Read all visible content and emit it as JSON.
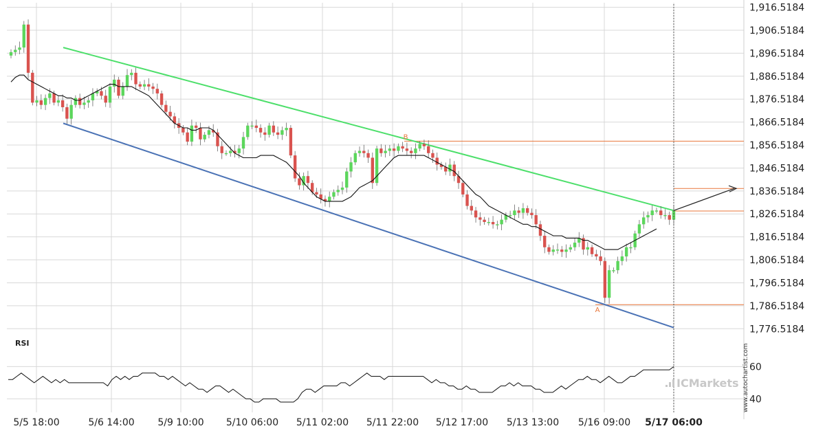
{
  "chart_data": {
    "type": "candlestick",
    "title": "",
    "x_ticks": [
      "5/5 18:00",
      "5/6 14:00",
      "5/9 10:00",
      "5/10 06:00",
      "5/11 02:00",
      "5/11 22:00",
      "5/12 17:00",
      "5/13 13:00",
      "5/16 09:00",
      "5/17 06:00"
    ],
    "x_tick_highlight": "5/17 06:00",
    "y_ticks": [
      "1,916.5184",
      "1,906.5184",
      "1,896.5184",
      "1,886.5184",
      "1,876.5184",
      "1,866.5184",
      "1,856.5184",
      "1,846.5184",
      "1,836.5184",
      "1,826.5184",
      "1,816.5184",
      "1,806.5184",
      "1,796.5184",
      "1,786.5184",
      "1,776.5184"
    ],
    "ylim": [
      1774.5,
      1918.5
    ],
    "grid": true,
    "price_series": [
      1897,
      1898,
      1899,
      1909,
      1888,
      1875,
      1876,
      1874,
      1877,
      1879,
      1875,
      1876,
      1873,
      1868,
      1874,
      1877,
      1874,
      1875,
      1876,
      1879,
      1880,
      1878,
      1875,
      1882,
      1885,
      1878,
      1882,
      1887,
      1888,
      1883,
      1882,
      1883,
      1882,
      1881,
      1879,
      1874,
      1871,
      1869,
      1866,
      1864,
      1862,
      1858,
      1865,
      1864,
      1859,
      1861,
      1863,
      1862,
      1856,
      1853,
      1853,
      1854,
      1853,
      1855,
      1860,
      1865,
      1865,
      1864,
      1862,
      1861,
      1865,
      1862,
      1861,
      1863,
      1864,
      1852,
      1842,
      1839,
      1843,
      1840,
      1836,
      1835,
      1833,
      1832,
      1834,
      1836,
      1837,
      1838,
      1845,
      1849,
      1853,
      1854,
      1853,
      1851,
      1840,
      1855,
      1853,
      1854,
      1855,
      1854,
      1856,
      1855,
      1854,
      1853,
      1855,
      1857,
      1856,
      1853,
      1851,
      1848,
      1847,
      1845,
      1848,
      1843,
      1840,
      1835,
      1830,
      1828,
      1825,
      1824,
      1823,
      1823,
      1822,
      1822,
      1824,
      1826,
      1826,
      1828,
      1827,
      1829,
      1827,
      1826,
      1822,
      1817,
      1812,
      1810,
      1811,
      1811,
      1810,
      1811,
      1812,
      1814,
      1816,
      1811,
      1812,
      1809,
      1808,
      1806,
      1790,
      1802,
      1802,
      1806,
      1808,
      1812,
      1812,
      1818,
      1822,
      1825,
      1826,
      1828,
      1828,
      1826,
      1826,
      1824,
      1828
    ],
    "ma_series": [
      1884,
      1886,
      1887,
      1887,
      1885,
      1884,
      1883,
      1882,
      1881,
      1880,
      1879,
      1878,
      1878,
      1877,
      1877,
      1876,
      1876,
      1877,
      1878,
      1879,
      1880,
      1881,
      1882,
      1883,
      1883,
      1882,
      1882,
      1882,
      1882,
      1881,
      1880,
      1879,
      1878,
      1876,
      1874,
      1872,
      1870,
      1868,
      1866,
      1865,
      1864,
      1864,
      1863,
      1863,
      1864,
      1864,
      1864,
      1863,
      1861,
      1859,
      1857,
      1855,
      1853,
      1852,
      1851,
      1851,
      1851,
      1851,
      1852,
      1852,
      1852,
      1852,
      1851,
      1850,
      1849,
      1847,
      1845,
      1843,
      1840,
      1838,
      1836,
      1834,
      1833,
      1832,
      1832,
      1832,
      1832,
      1832,
      1833,
      1834,
      1836,
      1838,
      1839,
      1840,
      1841,
      1843,
      1845,
      1847,
      1849,
      1851,
      1852,
      1852,
      1852,
      1852,
      1852,
      1852,
      1852,
      1851,
      1850,
      1849,
      1848,
      1847,
      1846,
      1845,
      1843,
      1841,
      1839,
      1837,
      1835,
      1834,
      1832,
      1830,
      1829,
      1828,
      1827,
      1826,
      1825,
      1824,
      1823,
      1822,
      1822,
      1821,
      1821,
      1820,
      1819,
      1818,
      1817,
      1817,
      1817,
      1816,
      1816,
      1816,
      1816,
      1815,
      1815,
      1814,
      1813,
      1812,
      1811,
      1811,
      1811,
      1811,
      1812,
      1813,
      1814,
      1815,
      1816,
      1817,
      1818,
      1819,
      1820
    ],
    "channel_upper": {
      "start": {
        "x": "5/5 21:00",
        "y": 1899.0
      },
      "end": {
        "x": "5/17 06:00",
        "y": 1828.0
      }
    },
    "channel_lower": {
      "start": {
        "x": "5/5 21:00",
        "y": 1866.0
      },
      "end": {
        "x": "5/17 06:00",
        "y": 1777.0
      }
    },
    "levels": [
      1858.2,
      1837.6,
      1827.8,
      1787.0
    ],
    "projection": {
      "from": 1828.0,
      "to": 1837.6
    },
    "points": [
      {
        "label": "A",
        "y": 1787.0,
        "position": "below"
      },
      {
        "label": "B",
        "y": 1858.2,
        "position": "above"
      }
    ],
    "rsi": {
      "title": "RSI",
      "ticks": [
        "60",
        "40"
      ],
      "ylim": [
        35,
        70
      ],
      "values": [
        52,
        52,
        54,
        56,
        54,
        52,
        50,
        52,
        54,
        52,
        50,
        52,
        50,
        52,
        50,
        50,
        50,
        50,
        50,
        50,
        50,
        50,
        50,
        48,
        52,
        54,
        52,
        54,
        52,
        54,
        54,
        56,
        56,
        56,
        56,
        54,
        54,
        52,
        54,
        52,
        50,
        48,
        50,
        48,
        46,
        46,
        44,
        46,
        48,
        48,
        46,
        44,
        46,
        44,
        42,
        40,
        40,
        38,
        38,
        40,
        40,
        40,
        40,
        38,
        38,
        38,
        38,
        40,
        44,
        46,
        46,
        44,
        46,
        48,
        48,
        48,
        48,
        50,
        50,
        48,
        50,
        52,
        54,
        56,
        54,
        54,
        54,
        52,
        54,
        54,
        54,
        54,
        54,
        54,
        54,
        54,
        54,
        52,
        50,
        52,
        50,
        50,
        48,
        48,
        46,
        46,
        48,
        46,
        46,
        44,
        44,
        44,
        44,
        46,
        48,
        48,
        50,
        48,
        50,
        48,
        48,
        48,
        46,
        46,
        44,
        44,
        44,
        46,
        48,
        46,
        48,
        50,
        52,
        52,
        54,
        52,
        52,
        50,
        52,
        54,
        52,
        50,
        50,
        52,
        54,
        54,
        56,
        58,
        58,
        58,
        58,
        58,
        58,
        58,
        60
      ]
    }
  },
  "watermark": {
    "primary": "ICMarkets"
  },
  "side_text": "www.autochartist.com",
  "colors": {
    "bull": "#5cd65c",
    "bear": "#d9534f",
    "upper_channel": "#4cdf6a",
    "lower_channel": "#4a72b5",
    "levels": "#e8763a",
    "moving_average": "#111111",
    "grid": "#d8d8d8"
  }
}
